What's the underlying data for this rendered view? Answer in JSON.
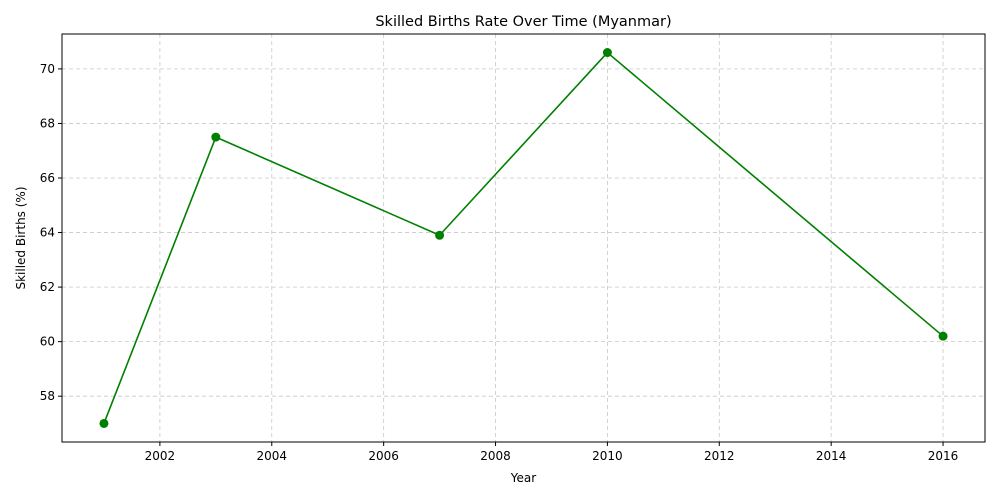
{
  "chart_data": {
    "type": "line",
    "title": "Skilled Births Rate Over Time (Myanmar)",
    "xlabel": "Year",
    "ylabel": "Skilled Births (%)",
    "x": [
      2001,
      2003,
      2007,
      2010,
      2016
    ],
    "series": [
      {
        "values": [
          57.0,
          67.5,
          63.9,
          70.6,
          60.2
        ],
        "color": "#008000",
        "marker": "circle"
      }
    ],
    "xlim": [
      2000.25,
      2016.75
    ],
    "ylim": [
      56.32,
      71.28
    ],
    "xticks": [
      2002,
      2004,
      2006,
      2008,
      2010,
      2012,
      2014,
      2016
    ],
    "yticks": [
      58,
      60,
      62,
      64,
      66,
      68,
      70
    ],
    "grid": true,
    "grid_style": "dashed",
    "grid_color": "#c8c8c8",
    "legend": false
  }
}
